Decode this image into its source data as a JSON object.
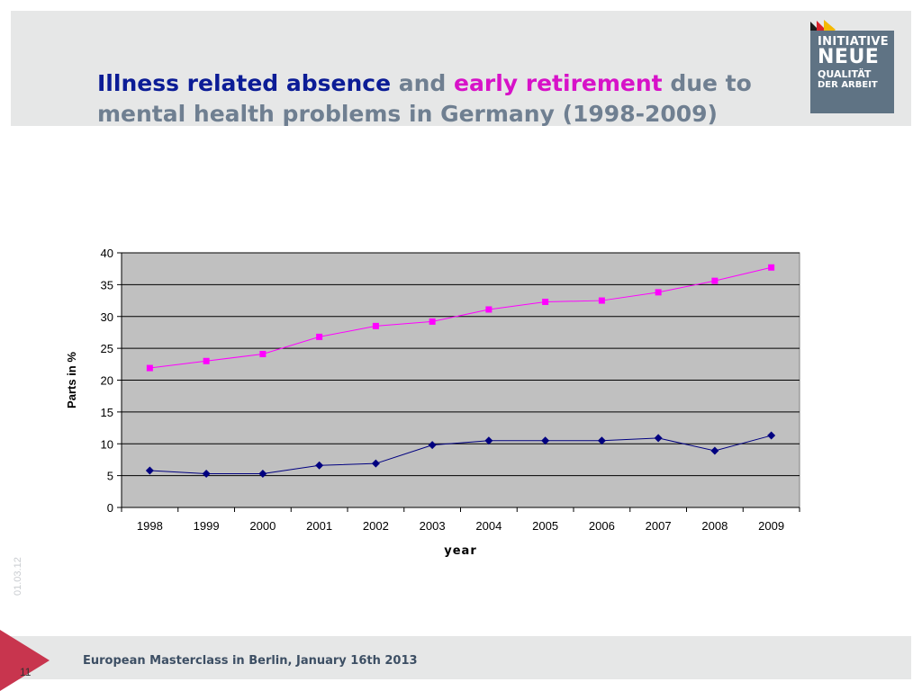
{
  "title": {
    "part1": "Illness related absence",
    "part2": " and ",
    "part3": "early retirement",
    "part4": " due to mental health problems in Germany (1998-2009)"
  },
  "logo": {
    "line1": "INITIATIVE",
    "line2": "NEUE",
    "line3": "QUALITÄT",
    "line4": "DER ARBEIT"
  },
  "date": "01.03.12",
  "footer": {
    "text": "European Masterclass in Berlin, January 16th 2013",
    "slide_number": "11"
  },
  "colors": {
    "accent_pink": "#d712c8",
    "accent_blue": "#0b1c96",
    "plot_bg": "#c0c0c0"
  },
  "chart_data": {
    "type": "line",
    "categories": [
      "1998",
      "1999",
      "2000",
      "2001",
      "2002",
      "2003",
      "2004",
      "2005",
      "2006",
      "2007",
      "2008",
      "2009"
    ],
    "series": [
      {
        "values": [
          21.9,
          23.0,
          24.1,
          26.8,
          28.5,
          29.2,
          31.1,
          32.3,
          32.5,
          33.8,
          35.6,
          37.7
        ],
        "color": "#ff00ff",
        "marker": "square"
      },
      {
        "values": [
          5.8,
          5.3,
          5.3,
          6.6,
          6.9,
          9.8,
          10.5,
          10.5,
          10.5,
          10.9,
          8.9,
          11.3
        ],
        "color": "#000080",
        "marker": "diamond"
      }
    ],
    "xlabel": "year",
    "ylabel": "Parts in %",
    "ylim": [
      0,
      40
    ],
    "yticks": [
      0,
      5,
      10,
      15,
      20,
      25,
      30,
      35,
      40
    ],
    "grid": true,
    "legend": "none"
  }
}
